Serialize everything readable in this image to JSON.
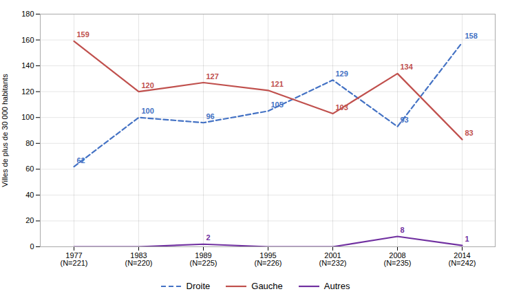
{
  "chart_data": {
    "type": "line",
    "categories": [
      "1977\n(N=221)",
      "1983\n(N=220)",
      "1989\n(N=225)",
      "1995\n(N=226)",
      "2001\n(N=232)",
      "2008\n(N=235)",
      "2014\n(N=242)"
    ],
    "series": [
      {
        "name": "Droite",
        "color": "#4472C4",
        "line_style": "dashed",
        "values": [
          62,
          100,
          96,
          105,
          129,
          93,
          158
        ]
      },
      {
        "name": "Gauche",
        "color": "#C0504D",
        "line_style": "solid",
        "values": [
          159,
          120,
          127,
          121,
          103,
          134,
          83
        ]
      },
      {
        "name": "Autres",
        "color": "#7030A0",
        "line_style": "solid",
        "values": [
          0,
          0,
          2,
          0,
          0,
          8,
          1
        ],
        "value_labels": [
          null,
          null,
          "2",
          null,
          null,
          "8",
          "1"
        ]
      }
    ],
    "ylabel": "Villes de plus de 30 000 habitants",
    "ylim": [
      0,
      180
    ],
    "yticks": [
      0,
      20,
      40,
      60,
      80,
      100,
      120,
      140,
      160,
      180
    ],
    "grid": true,
    "legend": "bottom",
    "data_labels": true
  }
}
